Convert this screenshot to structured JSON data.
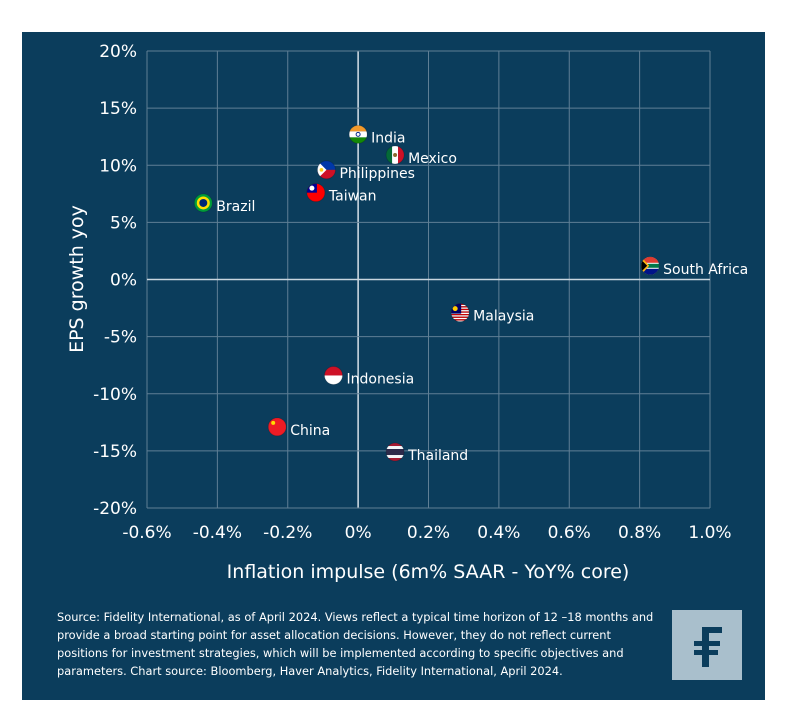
{
  "chart_data": {
    "type": "scatter",
    "xlabel": "Inflation impulse (6m% SAAR - YoY% core)",
    "ylabel": "EPS growth yoy",
    "xlim": [
      -0.6,
      1.0
    ],
    "ylim": [
      -20,
      20
    ],
    "x_ticks": [
      "-0.6%",
      "-0.4%",
      "-0.2%",
      "0%",
      "0.2%",
      "0.4%",
      "0.6%",
      "0.8%",
      "1.0%"
    ],
    "y_ticks": [
      "20%",
      "15%",
      "10%",
      "5%",
      "0%",
      "-5%",
      "-10%",
      "-15%",
      "-20%"
    ],
    "grid": true,
    "points": [
      {
        "label": "India",
        "x": 0.0,
        "y": 12.7,
        "icon": "india-flag"
      },
      {
        "label": "Mexico",
        "x": 0.105,
        "y": 10.9,
        "icon": "mexico-flag"
      },
      {
        "label": "Philippines",
        "x": -0.09,
        "y": 9.6,
        "icon": "philippines-flag"
      },
      {
        "label": "Taiwan",
        "x": -0.12,
        "y": 7.6,
        "icon": "taiwan-flag"
      },
      {
        "label": "Brazil",
        "x": -0.44,
        "y": 6.7,
        "icon": "brazil-flag"
      },
      {
        "label": "South Africa",
        "x": 0.83,
        "y": 1.2,
        "icon": "south-africa-flag"
      },
      {
        "label": "Malaysia",
        "x": 0.29,
        "y": -2.9,
        "icon": "malaysia-flag"
      },
      {
        "label": "Indonesia",
        "x": -0.07,
        "y": -8.4,
        "icon": "indonesia-flag"
      },
      {
        "label": "China",
        "x": -0.23,
        "y": -12.9,
        "icon": "china-flag"
      },
      {
        "label": "Thailand",
        "x": 0.105,
        "y": -15.1,
        "icon": "thailand-flag"
      }
    ]
  },
  "source": "Source: Fidelity International, as of April 2024. Views reflect a typical time horizon of 12 –18 months and provide a broad starting point for asset allocation decisions. However, they do not reflect current positions for investment strategies, which will be implemented according to specific objectives and parameters. Chart source: Bloomberg, Haver Analytics, Fidelity International, April 2024.",
  "colors": {
    "background": "#0b3d5c",
    "grid": "#5f7f95",
    "text": "#ffffff",
    "logo_bg": "#a9bfcc"
  },
  "logo": "Fidelity F"
}
